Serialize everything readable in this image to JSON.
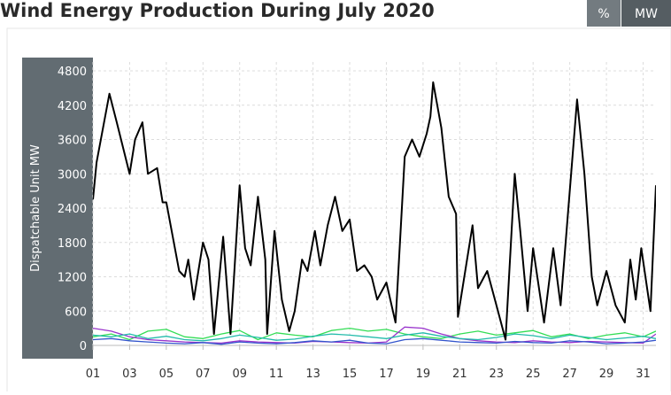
{
  "chart_data": {
    "type": "line",
    "title": "Wind Energy Production During July 2020",
    "ylabel": "Dispatchable Unit MW",
    "unit_toggle": {
      "options": [
        "%",
        "MW"
      ],
      "selected": "MW"
    },
    "xlim": [
      1,
      31.7
    ],
    "ylim": [
      0,
      4800
    ],
    "xticks": [
      {
        "value": 1,
        "label": "01"
      },
      {
        "value": 3,
        "label": "03"
      },
      {
        "value": 5,
        "label": "05"
      },
      {
        "value": 7,
        "label": "07"
      },
      {
        "value": 9,
        "label": "09"
      },
      {
        "value": 11,
        "label": "11"
      },
      {
        "value": 13,
        "label": "13"
      },
      {
        "value": 15,
        "label": "15"
      },
      {
        "value": 17,
        "label": "17"
      },
      {
        "value": 19,
        "label": "19"
      },
      {
        "value": 21,
        "label": "21"
      },
      {
        "value": 23,
        "label": "23"
      },
      {
        "value": 25,
        "label": "25"
      },
      {
        "value": 27,
        "label": "27"
      },
      {
        "value": 29,
        "label": "29"
      },
      {
        "value": 31,
        "label": "31"
      }
    ],
    "yticks": [
      0,
      600,
      1200,
      1800,
      2400,
      3000,
      3600,
      4200,
      4800
    ],
    "grid": true,
    "series": [
      {
        "color": "#33dd55",
        "x": [
          1,
          2,
          3,
          4,
          5,
          6,
          7,
          8,
          9,
          10,
          11,
          12,
          13,
          14,
          15,
          16,
          17,
          18,
          19,
          20,
          21,
          22,
          23,
          24,
          25,
          26,
          27,
          28,
          29,
          30,
          31,
          31.7
        ],
        "values": [
          150,
          200,
          100,
          250,
          280,
          150,
          120,
          200,
          260,
          100,
          220,
          180,
          150,
          260,
          300,
          250,
          280,
          200,
          150,
          120,
          200,
          250,
          180,
          220,
          260,
          150,
          200,
          120,
          180,
          220,
          150,
          250
        ]
      },
      {
        "color": "#9933cc",
        "x": [
          1,
          2,
          3,
          4,
          5,
          6,
          7,
          8,
          9,
          10,
          11,
          12,
          13,
          14,
          15,
          16,
          17,
          18,
          19,
          20,
          21,
          22,
          23,
          24,
          25,
          26,
          27,
          28,
          29,
          30,
          31,
          31.7
        ],
        "values": [
          300,
          250,
          150,
          100,
          80,
          60,
          50,
          40,
          80,
          60,
          50,
          40,
          70,
          60,
          50,
          40,
          60,
          320,
          300,
          200,
          120,
          80,
          60,
          50,
          80,
          60,
          50,
          70,
          60,
          50,
          40,
          200
        ]
      },
      {
        "color": "#3355cc",
        "x": [
          1,
          2,
          3,
          4,
          5,
          6,
          7,
          8,
          9,
          10,
          11,
          12,
          13,
          14,
          15,
          16,
          17,
          18,
          19,
          20,
          21,
          22,
          23,
          24,
          25,
          26,
          27,
          28,
          29,
          30,
          31,
          31.7
        ],
        "values": [
          100,
          120,
          80,
          60,
          40,
          30,
          50,
          20,
          60,
          40,
          30,
          50,
          80,
          60,
          90,
          40,
          30,
          100,
          120,
          90,
          60,
          50,
          40,
          70,
          50,
          40,
          80,
          60,
          30,
          40,
          60,
          90
        ]
      },
      {
        "color": "#22bbaa",
        "x": [
          1,
          2,
          3,
          4,
          5,
          6,
          7,
          8,
          9,
          10,
          11,
          12,
          13,
          14,
          15,
          16,
          17,
          18,
          19,
          20,
          21,
          22,
          23,
          24,
          25,
          26,
          27,
          28,
          29,
          30,
          31,
          31.7
        ],
        "values": [
          180,
          150,
          200,
          120,
          160,
          100,
          80,
          120,
          180,
          140,
          90,
          110,
          160,
          200,
          180,
          150,
          120,
          180,
          220,
          160,
          120,
          100,
          140,
          200,
          170,
          120,
          180,
          140,
          100,
          130,
          160,
          120
        ]
      },
      {
        "color": "#000000",
        "x": [
          1,
          1.2,
          1.9,
          2.3,
          3,
          3.3,
          3.7,
          4,
          4.5,
          4.8,
          5,
          5.7,
          6,
          6.2,
          6.5,
          7,
          7.3,
          7.6,
          8.1,
          8.5,
          9,
          9.3,
          9.6,
          10,
          10.4,
          10.5,
          10.9,
          11.3,
          11.7,
          12,
          12.4,
          12.7,
          13.1,
          13.4,
          13.8,
          14.2,
          14.6,
          15,
          15.4,
          15.8,
          16.2,
          16.5,
          17,
          17.5,
          18,
          18.4,
          18.8,
          19.2,
          19.4,
          19.55,
          20,
          20.4,
          20.8,
          20.9,
          21.7,
          22,
          22.5,
          23,
          23.5,
          24,
          24.3,
          24.7,
          25,
          25.6,
          26.1,
          26.5,
          27.4,
          27.8,
          28.2,
          28.5,
          29,
          29.5,
          30,
          30.3,
          30.6,
          30.9,
          31.4,
          31.7
        ],
        "values": [
          2550,
          3200,
          4400,
          3900,
          3000,
          3600,
          3900,
          3000,
          3100,
          2500,
          2500,
          1300,
          1200,
          1500,
          800,
          1800,
          1500,
          200,
          1900,
          200,
          2800,
          1700,
          1400,
          2600,
          1500,
          200,
          2000,
          800,
          250,
          600,
          1500,
          1300,
          2000,
          1400,
          2100,
          2600,
          2000,
          2200,
          1300,
          1400,
          1200,
          800,
          1100,
          400,
          3300,
          3600,
          3300,
          3700,
          4000,
          4600,
          3800,
          2600,
          2300,
          500,
          2100,
          1000,
          1300,
          700,
          100,
          3000,
          2000,
          600,
          1700,
          400,
          1700,
          700,
          4300,
          3000,
          1200,
          700,
          1300,
          700,
          400,
          1500,
          800,
          1700,
          600,
          2800
        ]
      }
    ]
  }
}
